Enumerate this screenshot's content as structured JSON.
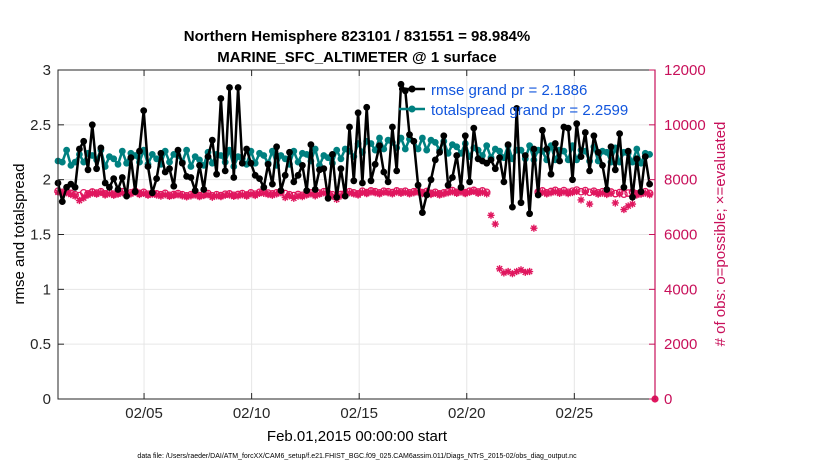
{
  "chart_data": {
    "type": "line",
    "title_line1": "Northern Hemisphere 823101 / 831551 = 98.984%",
    "title_line2": "MARINE_SFC_ALTIMETER @ 1 surface",
    "xlabel": "Feb.01,2015 00:00:00 start",
    "ylabel_left": "rmse and totalspread",
    "ylabel_right": "# of obs: o=possible; ×=evaluated",
    "footer": "data file: /Users/raeder/DAI/ATM_forcXX/CAM6_setup/f.e21.FHIST_BGC.f09_025.CAM6assim.011/Diags_NTrS_2015-02/obs_diag_output.nc",
    "xlim": [
      1,
      28.75
    ],
    "ylim_left": [
      0,
      3
    ],
    "ylim_right": [
      0,
      12000
    ],
    "x_ticks": [
      5,
      10,
      15,
      20,
      25
    ],
    "x_tick_labels": [
      "02/05",
      "02/10",
      "02/15",
      "02/20",
      "02/25"
    ],
    "y_ticks_left": [
      0,
      0.5,
      1,
      1.5,
      2,
      2.5,
      3
    ],
    "y_tick_labels_left": [
      "0",
      "0.5",
      "1",
      "1.5",
      "2",
      "2.5",
      "3"
    ],
    "y_ticks_right": [
      0,
      2000,
      4000,
      6000,
      8000,
      10000,
      12000
    ],
    "y_tick_labels_right": [
      "0",
      "2000",
      "4000",
      "6000",
      "8000",
      "10000",
      "12000"
    ],
    "grid": true,
    "legend_position": "top-right",
    "colors": {
      "rmse": "#000000",
      "totalspread": "#008080",
      "obs_possible": "#e0175f",
      "obs_evaluated": "#e0175f",
      "right_axis": "#c8105a",
      "legend_text": "#1155dd",
      "grid": "#e6e6e6"
    },
    "series": [
      {
        "name": "rmse grand pr = 2.1886",
        "axis": "left",
        "values": [
          1.97,
          1.8,
          1.93,
          1.96,
          1.93,
          2.28,
          2.35,
          2.09,
          2.5,
          2.1,
          2.29,
          1.97,
          1.93,
          2.01,
          1.91,
          2.02,
          1.85,
          2.2,
          1.89,
          2.26,
          2.63,
          2.12,
          1.88,
          2.01,
          2.24,
          2.07,
          2.1,
          1.94,
          2.27,
          2.15,
          2.03,
          2.02,
          1.9,
          2.13,
          1.91,
          2.21,
          2.36,
          2.05,
          2.74,
          2.08,
          2.84,
          2.02,
          2.84,
          2.15,
          2.28,
          2.15,
          2.04,
          2.01,
          1.93,
          2.14,
          1.96,
          2.3,
          1.9,
          2.04,
          2.25,
          1.98,
          2.04,
          2.13,
          1.9,
          2.32,
          1.91,
          2.09,
          2.1,
          1.83,
          2.23,
          1.84,
          2.1,
          1.85,
          2.48,
          1.99,
          2.61,
          1.97,
          2.66,
          1.99,
          2.14,
          2.31,
          2.07,
          1.98,
          2.48,
          2.08,
          2.87,
          2.81,
          2.41,
          2.35,
          1.95,
          1.7,
          1.86,
          2.0,
          2.18,
          2.25,
          2.4,
          1.95,
          2.02,
          2.22,
          1.93,
          2.4,
          1.98,
          2.47,
          2.19,
          2.17,
          2.15,
          2.18,
          2.1,
          2.2,
          1.98,
          2.32,
          1.75,
          2.65,
          1.79,
          2.22,
          1.69,
          2.28,
          1.86,
          2.45,
          2.28,
          2.05,
          2.33,
          2.17,
          2.48,
          2.47,
          2.0,
          2.51,
          2.21,
          2.43,
          2.08,
          2.4,
          2.25,
          2.13,
          1.91,
          2.3,
          2.09,
          2.42,
          1.93,
          2.26,
          1.84,
          2.19,
          1.89,
          2.21,
          1.96
        ]
      },
      {
        "name": "totalspread grand pr = 2.2599",
        "axis": "left",
        "values": [
          2.17,
          2.16,
          2.27,
          2.13,
          2.16,
          2.23,
          2.16,
          2.24,
          2.22,
          2.18,
          2.27,
          2.12,
          2.21,
          2.19,
          2.14,
          2.26,
          2.15,
          2.24,
          2.22,
          2.16,
          2.27,
          2.14,
          2.23,
          2.19,
          2.14,
          2.26,
          2.16,
          2.23,
          2.22,
          2.16,
          2.27,
          2.12,
          2.21,
          2.18,
          2.13,
          2.25,
          2.15,
          2.23,
          2.22,
          2.16,
          2.27,
          2.12,
          2.21,
          2.19,
          2.14,
          2.26,
          2.15,
          2.24,
          2.22,
          2.15,
          2.26,
          2.13,
          2.22,
          2.19,
          2.14,
          2.26,
          2.16,
          2.24,
          2.23,
          2.17,
          2.28,
          2.13,
          2.22,
          2.2,
          2.15,
          2.27,
          2.19,
          2.28,
          2.26,
          2.21,
          2.33,
          2.25,
          2.35,
          2.33,
          2.27,
          2.38,
          2.28,
          2.36,
          2.34,
          2.29,
          2.38,
          2.28,
          2.37,
          2.35,
          2.28,
          2.38,
          2.27,
          2.36,
          2.34,
          2.27,
          2.35,
          2.24,
          2.32,
          2.3,
          2.24,
          2.33,
          2.21,
          2.29,
          2.27,
          2.22,
          2.31,
          2.2,
          2.28,
          2.26,
          2.2,
          2.31,
          2.19,
          2.27,
          2.27,
          2.19,
          2.31,
          2.18,
          2.27,
          2.26,
          2.18,
          2.31,
          2.18,
          2.27,
          2.26,
          2.18,
          2.31,
          2.18,
          2.27,
          2.26,
          2.17,
          2.3,
          2.17,
          2.26,
          2.25,
          2.16,
          2.29,
          2.16,
          2.25,
          2.24,
          2.16,
          2.28,
          2.15,
          2.24,
          2.23
        ]
      },
      {
        "name": "obs possible",
        "axis": "right",
        "values": [
          7580,
          7540,
          7560,
          7500,
          7450,
          7420,
          7520,
          7480,
          7550,
          7510,
          7560,
          7480,
          7530,
          7470,
          7510,
          7560,
          7490,
          7520,
          7580,
          7500,
          7540,
          7470,
          7510,
          7480,
          7450,
          7500,
          7430,
          7460,
          7490,
          7450,
          7410,
          7450,
          7480,
          7420,
          7460,
          7490,
          7410,
          7450,
          7420,
          7470,
          7480,
          7430,
          7460,
          7490,
          7440,
          7520,
          7470,
          7540,
          7560,
          7510,
          7480,
          7520,
          7560,
          7490,
          7450,
          7420,
          7460,
          7430,
          7480,
          7520,
          7460,
          7510,
          7560,
          7500,
          7450,
          7410,
          7460,
          7500,
          7560,
          7520,
          7480,
          7580,
          7530,
          7590,
          7560,
          7520,
          7580,
          7560,
          7530,
          7590,
          7550,
          7580,
          7520,
          7560,
          7590,
          7530,
          7570,
          7500,
          7540,
          7480,
          7520,
          7560,
          7600,
          7540,
          7590,
          7530,
          7580,
          7610,
          7550,
          7590,
          7540,
          null,
          null,
          null,
          null,
          null,
          null,
          null,
          null,
          null,
          null,
          null,
          7550,
          7590,
          7520,
          7570,
          7610,
          7550,
          7600,
          7540,
          7580,
          7620,
          7560,
          7600,
          7540,
          7580,
          7520,
          7560,
          7510,
          7550,
          7490,
          7530,
          7470,
          7510,
          7550,
          7480,
          7520,
          7560,
          7500
        ]
      },
      {
        "name": "obs evaluated",
        "axis": "right",
        "values": [
          7540,
          7500,
          7520,
          7460,
          7400,
          7240,
          7330,
          7440,
          7510,
          7470,
          7530,
          7440,
          7490,
          7430,
          7470,
          7520,
          7450,
          7480,
          7540,
          7460,
          7500,
          7430,
          7470,
          7440,
          7400,
          7450,
          7390,
          7420,
          7450,
          7410,
          7370,
          7410,
          7440,
          7380,
          7420,
          7450,
          7360,
          7410,
          7380,
          7430,
          7440,
          7390,
          7410,
          7450,
          7400,
          7480,
          7420,
          7500,
          7500,
          7460,
          7430,
          7480,
          7520,
          7350,
          7410,
          7320,
          7400,
          7380,
          7440,
          7480,
          7410,
          7470,
          7520,
          7460,
          7400,
          7280,
          7410,
          7460,
          7520,
          7480,
          7440,
          7540,
          7490,
          7550,
          7520,
          7480,
          7540,
          7520,
          7480,
          7550,
          7500,
          7540,
          7480,
          7520,
          7550,
          7490,
          7530,
          7460,
          7500,
          7440,
          7480,
          7520,
          7560,
          7500,
          7550,
          7490,
          7540,
          7570,
          7500,
          7540,
          7480,
          6700,
          6380,
          4750,
          4600,
          4650,
          4570,
          4650,
          4710,
          4620,
          4650,
          6230,
          7500,
          7540,
          7480,
          7520,
          7560,
          7500,
          7550,
          7490,
          7530,
          7570,
          7260,
          7550,
          7110,
          7540,
          7470,
          7510,
          7460,
          7500,
          7150,
          7480,
          6910,
          7040,
          7110,
          7440,
          7470,
          7510,
          7450
        ]
      }
    ],
    "legend": [
      "rmse grand pr = 2.1886",
      "totalspread grand pr = 2.2599"
    ]
  }
}
